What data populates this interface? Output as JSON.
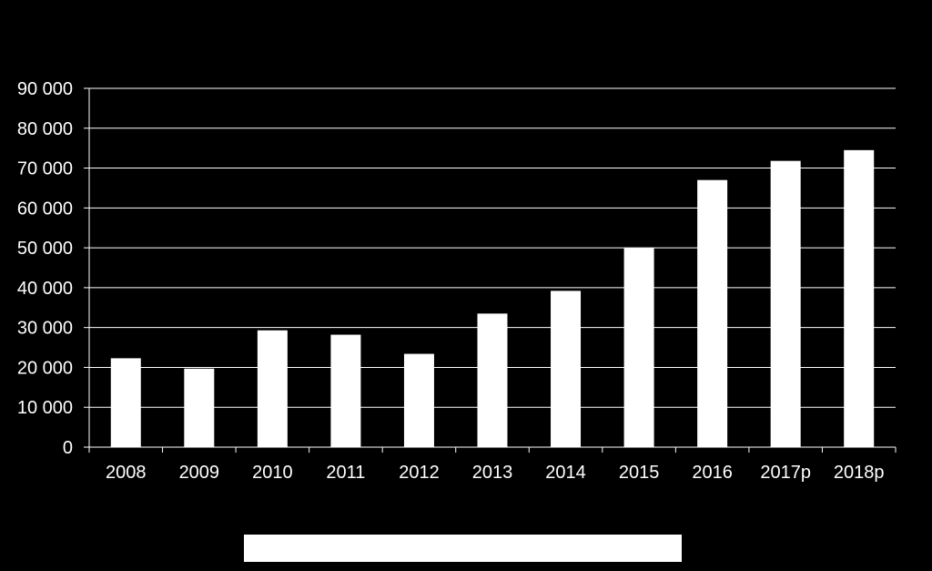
{
  "colors": {
    "background": "#000000",
    "bar": "#ffffff",
    "gridline": "#ffffff",
    "text": "#ffffff"
  },
  "chart_data": {
    "type": "bar",
    "title": "",
    "xlabel": "",
    "ylabel": "",
    "categories": [
      "2008",
      "2009",
      "2010",
      "2011",
      "2012",
      "2013",
      "2014",
      "2015",
      "2016",
      "2017p",
      "2018p"
    ],
    "values": [
      22300,
      19700,
      29300,
      28200,
      23400,
      33500,
      39200,
      49900,
      67000,
      71800,
      74500
    ],
    "ylim": [
      0,
      90000
    ],
    "yticks": [
      0,
      10000,
      20000,
      30000,
      40000,
      50000,
      60000,
      70000,
      80000,
      90000
    ],
    "ytick_labels": [
      "0",
      "10 000",
      "20 000",
      "30 000",
      "40 000",
      "50 000",
      "60 000",
      "70 000",
      "80 000",
      "90 000"
    ],
    "grid": true,
    "legend": "bottom"
  }
}
